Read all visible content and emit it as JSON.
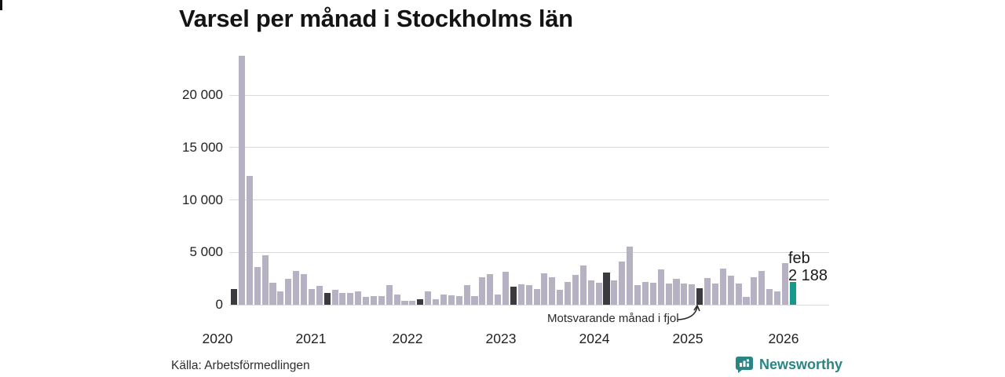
{
  "title": "Varsel per månad i Stockholms län",
  "source": "Källa: Arbetsförmedlingen",
  "brand": "Newsworthy",
  "annotation": "Motsvarande månad i fjol",
  "current_point_label": {
    "month": "feb",
    "value": "2 188"
  },
  "colors": {
    "bar_default": "#b6b2c3",
    "bar_reference": "#3b3a3e",
    "bar_current": "#16998a",
    "grid": "#d9d9d9",
    "brand_teal": "#2b8584"
  },
  "chart_data": {
    "type": "bar",
    "title": "Varsel per månad i Stockholms län",
    "xlabel": "",
    "ylabel": "",
    "ylim": [
      0,
      24000
    ],
    "grid": true,
    "legend": false,
    "yticks": [
      0,
      5000,
      10000,
      15000,
      20000
    ],
    "ytick_labels": [
      "0",
      "5 000",
      "10 000",
      "15 000",
      "20 000"
    ],
    "xtick_labels": [
      "2020",
      "2021",
      "2022",
      "2023",
      "2024",
      "2025",
      "2026"
    ],
    "months": [
      "2020-02",
      "2020-03",
      "2020-04",
      "2020-05",
      "2020-06",
      "2020-07",
      "2020-08",
      "2020-09",
      "2020-10",
      "2020-11",
      "2020-12",
      "2021-01",
      "2021-02",
      "2021-03",
      "2021-04",
      "2021-05",
      "2021-06",
      "2021-07",
      "2021-08",
      "2021-09",
      "2021-10",
      "2021-11",
      "2021-12",
      "2022-01",
      "2022-02",
      "2022-03",
      "2022-04",
      "2022-05",
      "2022-06",
      "2022-07",
      "2022-08",
      "2022-09",
      "2022-10",
      "2022-11",
      "2022-12",
      "2023-01",
      "2023-02",
      "2023-03",
      "2023-04",
      "2023-05",
      "2023-06",
      "2023-07",
      "2023-08",
      "2023-09",
      "2023-10",
      "2023-11",
      "2023-12",
      "2024-01",
      "2024-02",
      "2024-03",
      "2024-04",
      "2024-05",
      "2024-06",
      "2024-07",
      "2024-08",
      "2024-09",
      "2024-10",
      "2024-11",
      "2024-12",
      "2025-01",
      "2025-02",
      "2025-03",
      "2025-04",
      "2025-05",
      "2025-06",
      "2025-07",
      "2025-08",
      "2025-09",
      "2025-10",
      "2025-11",
      "2025-12",
      "2026-01",
      "2026-02"
    ],
    "values": [
      1500,
      23800,
      12300,
      3600,
      4700,
      2100,
      1300,
      2500,
      3250,
      2900,
      1500,
      1800,
      1100,
      1400,
      1150,
      1100,
      1300,
      750,
      800,
      850,
      1850,
      950,
      350,
      400,
      550,
      1250,
      550,
      1000,
      900,
      800,
      1850,
      850,
      2650,
      2950,
      950,
      3150,
      1700,
      1950,
      1850,
      1500,
      3000,
      2600,
      1400,
      2150,
      2850,
      3750,
      2350,
      2100,
      3050,
      2300,
      4100,
      5550,
      1900,
      2150,
      2100,
      3350,
      2000,
      2500,
      2050,
      1950,
      1600,
      2550,
      2000,
      3430,
      2780,
      2050,
      780,
      2630,
      3200,
      1480,
      1250,
      3950,
      2188
    ],
    "reference_month_indices": [
      0,
      12,
      24,
      36,
      48,
      60
    ],
    "annotated_index": 60,
    "current_index": 72
  }
}
